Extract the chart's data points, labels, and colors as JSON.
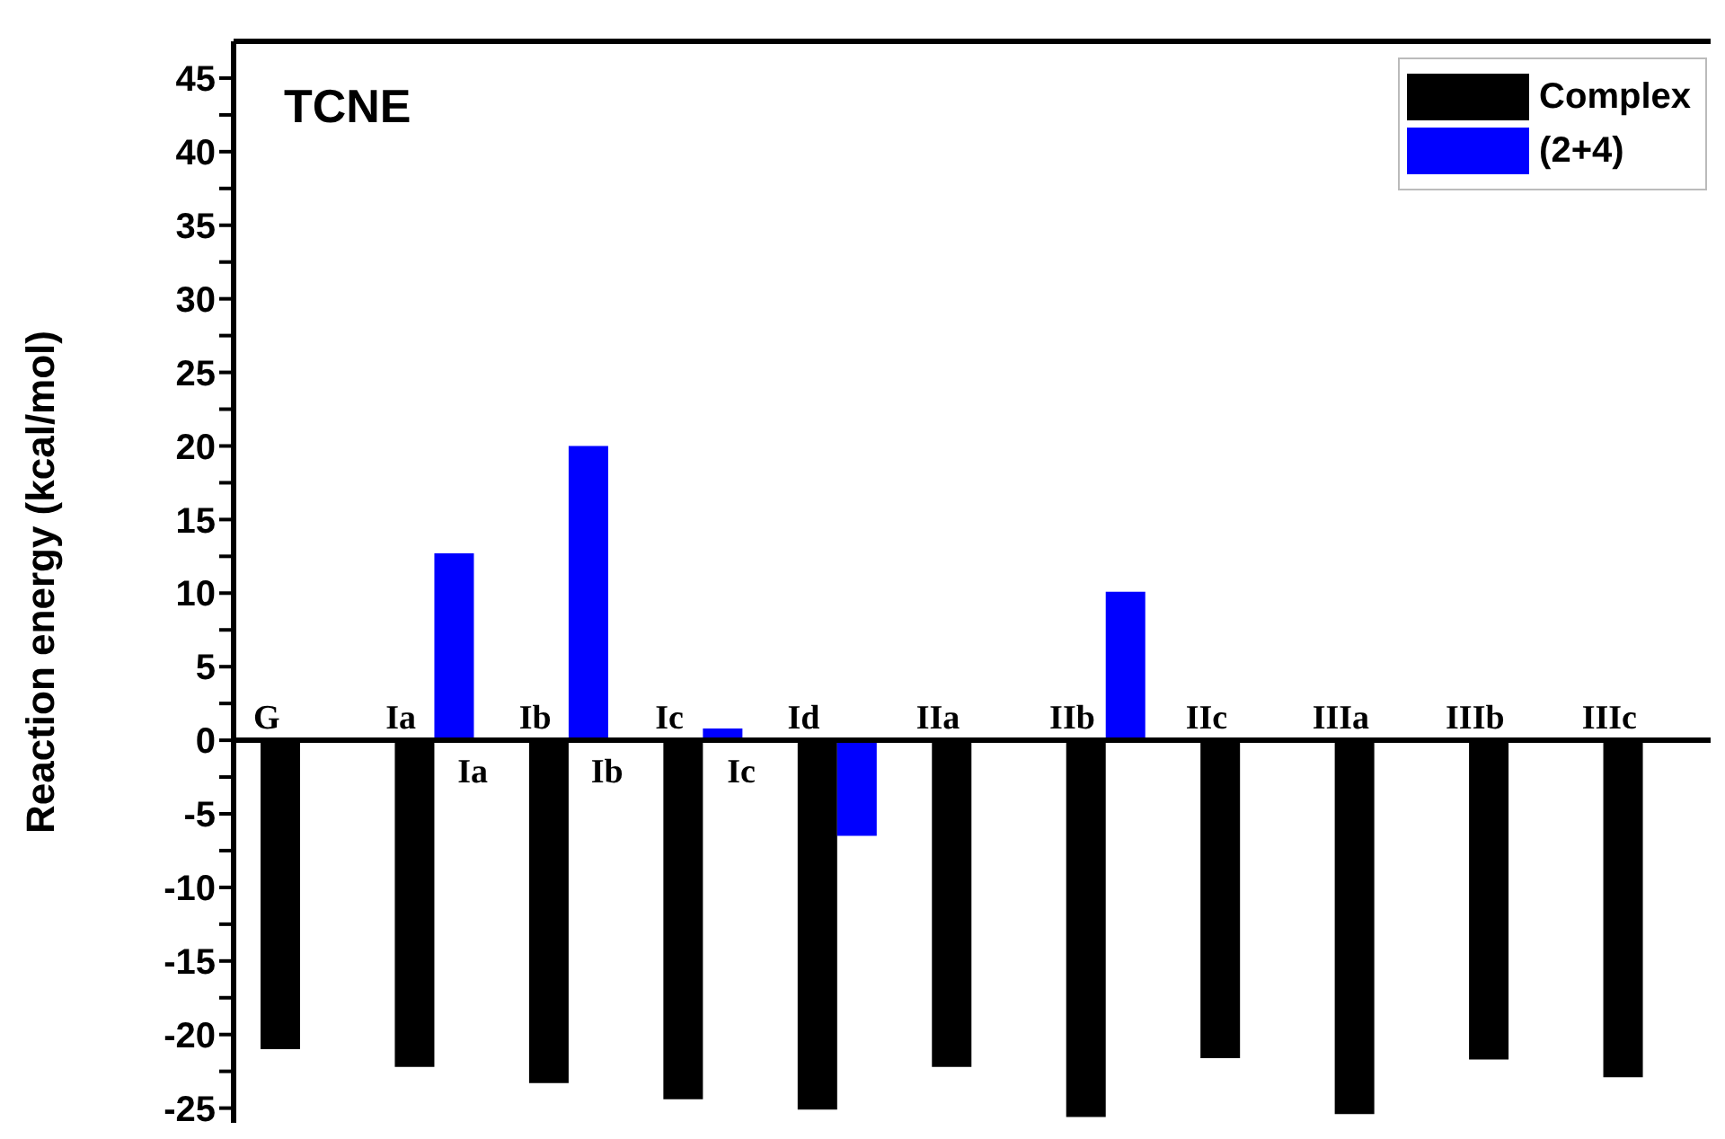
{
  "chart_data": {
    "type": "bar",
    "title": "TCNE",
    "ylabel": "Reaction energy (kcal/mol)",
    "categories": [
      "G",
      "Ia",
      "Ib",
      "Ic",
      "Id",
      "IIa",
      "IIb",
      "IIc",
      "IIIa",
      "IIIb",
      "IIIc"
    ],
    "series": [
      {
        "name": "Complex",
        "color": "#000000",
        "values": [
          -21,
          -22.2,
          -23.3,
          -24.4,
          -25.1,
          -22.2,
          -25.6,
          -21.6,
          -25.4,
          -21.7,
          -22.9
        ]
      },
      {
        "name": "(2+4)",
        "color": "#0000ff",
        "values": [
          null,
          12.7,
          20,
          0.8,
          -6.5,
          null,
          10.1,
          null,
          null,
          null,
          null
        ]
      }
    ],
    "ylim": [
      -26,
      47.5
    ],
    "yticks": [
      -25,
      {
        "value": -22.5,
        "label": null
      },
      -20,
      {
        "value": -17.5,
        "label": null
      },
      -15,
      {
        "value": -12.5,
        "label": null
      },
      -10,
      {
        "value": -7.5,
        "label": null
      },
      -5,
      {
        "value": -2.5,
        "label": null
      },
      0,
      {
        "value": 2.5,
        "label": null
      },
      5,
      {
        "value": 7.5,
        "label": null
      },
      10,
      {
        "value": 12.5,
        "label": null
      },
      15,
      {
        "value": 17.5,
        "label": null
      },
      20,
      {
        "value": 22.5,
        "label": null
      },
      25,
      {
        "value": 27.5,
        "label": null
      },
      30,
      {
        "value": 32.5,
        "label": null
      },
      35,
      {
        "value": 37.5,
        "label": null
      },
      40,
      {
        "value": 42.5,
        "label": null
      },
      45
    ],
    "annotations": [
      {
        "text": "Ia",
        "x": "Ia",
        "y": 0
      },
      {
        "text": "Ib",
        "x": "Ib",
        "y": 0
      },
      {
        "text": "Ic",
        "x": "Ic",
        "y": 0
      }
    ],
    "legend": "top right",
    "grid": false
  }
}
